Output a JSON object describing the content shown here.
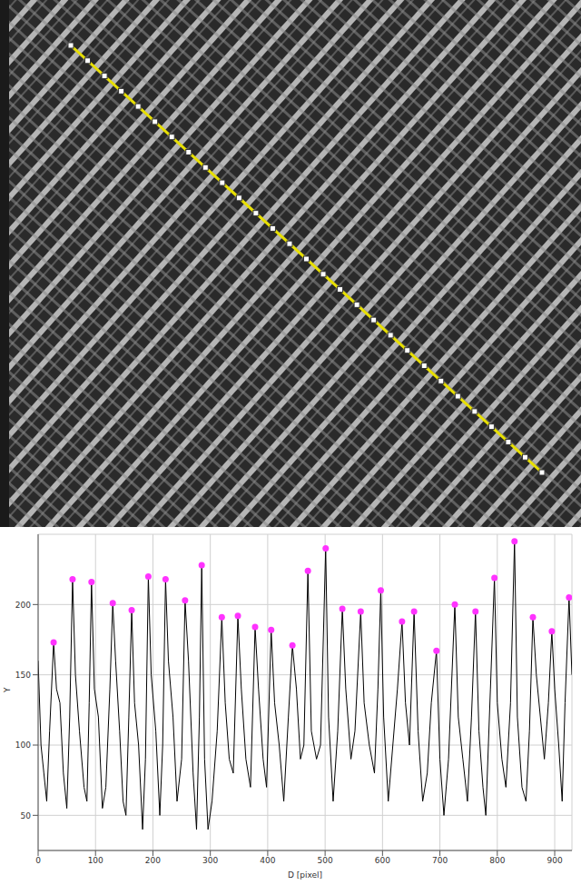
{
  "chart_data": {
    "type": "line",
    "xlabel": "D [pixel]",
    "ylabel": "Y",
    "xlim": [
      0,
      930
    ],
    "ylim": [
      25,
      250
    ],
    "xticks": [
      0,
      100,
      200,
      300,
      400,
      500,
      600,
      700,
      800,
      900
    ],
    "yticks": [
      50,
      100,
      150,
      200
    ],
    "grid": true,
    "series": [
      {
        "type": "line",
        "color": "#000000",
        "x": [
          0,
          5,
          10,
          15,
          20,
          27,
          32,
          38,
          44,
          50,
          55,
          60,
          65,
          72,
          80,
          85,
          89,
          93,
          98,
          105,
          112,
          118,
          125,
          130,
          135,
          142,
          148,
          153,
          158,
          163,
          168,
          175,
          182,
          187,
          192,
          197,
          205,
          212,
          217,
          222,
          227,
          235,
          242,
          250,
          256,
          262,
          270,
          276,
          281,
          285,
          290,
          296,
          303,
          312,
          320,
          326,
          333,
          340,
          348,
          354,
          362,
          370,
          378,
          384,
          392,
          398,
          406,
          412,
          420,
          428,
          436,
          443,
          450,
          457,
          463,
          470,
          476,
          485,
          492,
          501,
          506,
          514,
          522,
          530,
          536,
          545,
          552,
          562,
          568,
          577,
          586,
          592,
          597,
          602,
          610,
          618,
          626,
          634,
          640,
          647,
          655,
          662,
          670,
          678,
          685,
          694,
          700,
          707,
          715,
          726,
          732,
          740,
          748,
          755,
          762,
          768,
          775,
          780,
          788,
          795,
          800,
          808,
          815,
          823,
          830,
          835,
          843,
          850,
          856,
          862,
          868,
          875,
          882,
          889,
          895,
          900,
          907,
          913,
          918,
          925,
          930
        ],
        "values": [
          160,
          100,
          80,
          60,
          110,
          173,
          140,
          130,
          80,
          55,
          120,
          218,
          150,
          110,
          70,
          60,
          130,
          216,
          140,
          120,
          55,
          70,
          140,
          201,
          160,
          110,
          60,
          50,
          120,
          196,
          130,
          100,
          40,
          90,
          220,
          150,
          110,
          50,
          100,
          218,
          160,
          120,
          60,
          90,
          203,
          160,
          80,
          40,
          120,
          228,
          90,
          40,
          60,
          110,
          191,
          130,
          90,
          80,
          192,
          140,
          90,
          70,
          184,
          140,
          90,
          70,
          182,
          130,
          100,
          60,
          120,
          171,
          140,
          90,
          100,
          224,
          110,
          90,
          100,
          240,
          120,
          60,
          110,
          197,
          140,
          90,
          110,
          195,
          130,
          100,
          80,
          140,
          210,
          120,
          60,
          100,
          140,
          188,
          130,
          100,
          195,
          110,
          60,
          80,
          130,
          167,
          90,
          50,
          90,
          200,
          120,
          90,
          60,
          120,
          195,
          110,
          70,
          50,
          140,
          219,
          130,
          90,
          70,
          130,
          245,
          120,
          70,
          60,
          110,
          191,
          150,
          120,
          90,
          130,
          181,
          140,
          100,
          60,
          130,
          205,
          150
        ]
      },
      {
        "type": "scatter",
        "color": "#ff33ff",
        "marker": "circle",
        "x": [
          27,
          60,
          93,
          130,
          163,
          192,
          222,
          256,
          285,
          320,
          348,
          378,
          406,
          443,
          470,
          501,
          530,
          562,
          597,
          634,
          655,
          694,
          726,
          762,
          795,
          830,
          862,
          895,
          925
        ],
        "values": [
          173,
          218,
          216,
          201,
          196,
          220,
          218,
          203,
          228,
          191,
          192,
          184,
          182,
          171,
          224,
          240,
          197,
          195,
          210,
          188,
          195,
          167,
          200,
          195,
          219,
          245,
          191,
          181,
          205
        ]
      }
    ]
  }
}
